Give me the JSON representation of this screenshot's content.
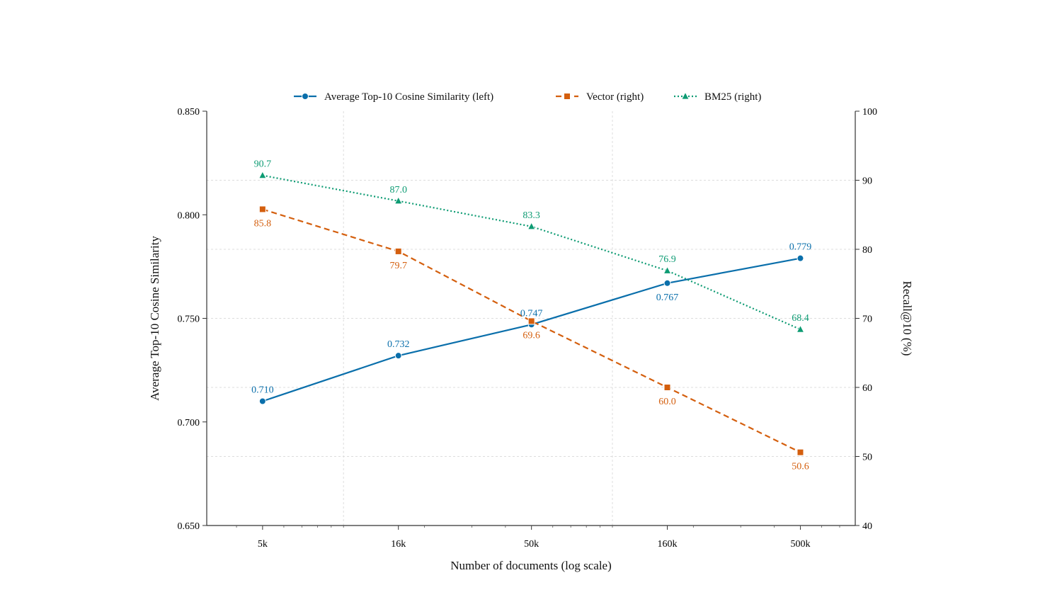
{
  "chart_data": {
    "type": "line",
    "xlabel": "Number of documents (log scale)",
    "ylabel_left": "Average Top-10 Cosine Similarity",
    "ylabel_right": "Recall@10 (%)",
    "x_scale": "log",
    "x": [
      5000,
      16000,
      50000,
      160000,
      500000
    ],
    "x_tick_labels": [
      "5k",
      "16k",
      "50k",
      "160k",
      "500k"
    ],
    "ylim_left": [
      0.65,
      0.85
    ],
    "y_ticks_left": [
      "0.650",
      "0.700",
      "0.750",
      "0.800",
      "0.850"
    ],
    "ylim_right": [
      40,
      100
    ],
    "y_ticks_right": [
      "40",
      "50",
      "60",
      "70",
      "80",
      "90",
      "100"
    ],
    "grid": true,
    "legend_position": "top-center",
    "series": [
      {
        "name": "Average Top-10 Cosine Similarity (left)",
        "axis": "left",
        "color": "#0a6fab",
        "marker": "circle",
        "line_style": "solid",
        "values": [
          0.71,
          0.732,
          0.747,
          0.767,
          0.779
        ],
        "labels": [
          "0.710",
          "0.732",
          "0.747",
          "0.767",
          "0.779"
        ]
      },
      {
        "name": "Vector (right)",
        "axis": "right",
        "color": "#d45f0e",
        "marker": "square",
        "line_style": "dashed",
        "values": [
          85.8,
          79.7,
          69.6,
          60.0,
          50.6
        ],
        "labels": [
          "85.8",
          "79.7",
          "69.6",
          "60.0",
          "50.6"
        ]
      },
      {
        "name": "BM25 (right)",
        "axis": "right",
        "color": "#0d9b73",
        "marker": "triangle",
        "line_style": "dotted",
        "values": [
          90.7,
          87.0,
          83.3,
          76.9,
          68.4
        ],
        "labels": [
          "90.7",
          "87.0",
          "83.3",
          "76.9",
          "68.4"
        ]
      }
    ]
  }
}
